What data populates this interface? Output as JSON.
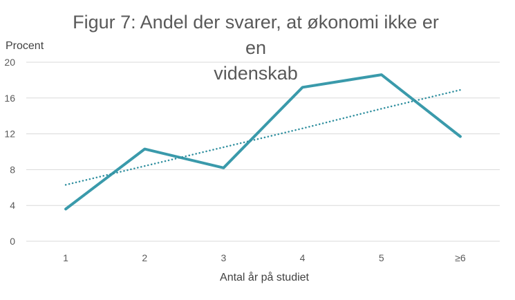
{
  "chart_data": {
    "type": "line",
    "title": "Figur 7: Andel der svarer, at økonomi ikke er en videnskab",
    "title_lines": [
      "Figur 7: Andel der svarer, at økonomi ikke er en",
      "videnskab"
    ],
    "xlabel": "Antal år på studiet",
    "ylabel": "Procent",
    "categories": [
      "1",
      "2",
      "3",
      "4",
      "5",
      "≥6"
    ],
    "series": [
      {
        "values": [
          3.6,
          10.3,
          8.2,
          17.2,
          18.6,
          11.7
        ],
        "color": "#3A9AAB",
        "style": "solid"
      },
      {
        "values": [
          6.3,
          8.4,
          10.5,
          12.6,
          14.8,
          16.9
        ],
        "color": "#2E8E9E",
        "style": "dotted",
        "trendline": true
      }
    ],
    "yticks": [
      "0",
      "4",
      "8",
      "12",
      "16",
      "20"
    ],
    "ylim": [
      0,
      20
    ],
    "grid": true,
    "legend": false
  }
}
